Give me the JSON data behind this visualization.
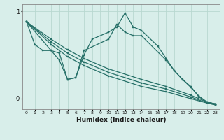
{
  "xlabel": "Humidex (Indice chaleur)",
  "bg_color": "#d8eeea",
  "line_color": "#267068",
  "grid_color": "#b8d8d0",
  "xlim": [
    -0.5,
    23.5
  ],
  "ylim": [
    -0.12,
    1.08
  ],
  "series": [
    {
      "x": [
        0,
        1,
        2,
        3,
        4,
        5,
        6,
        7,
        8,
        10,
        11,
        12,
        13,
        14,
        16,
        17,
        18,
        19,
        20,
        21,
        22,
        23
      ],
      "y": [
        0.88,
        0.62,
        0.55,
        0.55,
        0.52,
        0.22,
        0.24,
        0.5,
        0.68,
        0.76,
        0.82,
        0.98,
        0.82,
        0.78,
        0.6,
        0.46,
        0.32,
        0.22,
        0.14,
        0.02,
        -0.04,
        -0.06
      ]
    },
    {
      "x": [
        0,
        3,
        4,
        5,
        6,
        7,
        10,
        11,
        12,
        13,
        14,
        17,
        18,
        19,
        20,
        21,
        22,
        23
      ],
      "y": [
        0.88,
        0.55,
        0.44,
        0.22,
        0.24,
        0.55,
        0.68,
        0.85,
        0.76,
        0.72,
        0.72,
        0.44,
        0.32,
        0.22,
        0.13,
        0.03,
        -0.04,
        -0.06
      ]
    },
    {
      "x": [
        0,
        3,
        5,
        7,
        10,
        14,
        17,
        20,
        22,
        23
      ],
      "y": [
        0.88,
        0.68,
        0.56,
        0.46,
        0.34,
        0.22,
        0.14,
        0.04,
        -0.04,
        -0.06
      ]
    },
    {
      "x": [
        0,
        3,
        5,
        7,
        10,
        14,
        17,
        20,
        22,
        23
      ],
      "y": [
        0.88,
        0.65,
        0.52,
        0.42,
        0.3,
        0.18,
        0.11,
        0.02,
        -0.05,
        -0.07
      ]
    },
    {
      "x": [
        0,
        3,
        5,
        7,
        10,
        14,
        17,
        20,
        22,
        23
      ],
      "y": [
        0.88,
        0.62,
        0.48,
        0.38,
        0.26,
        0.14,
        0.08,
        0.0,
        -0.05,
        -0.07
      ]
    }
  ]
}
